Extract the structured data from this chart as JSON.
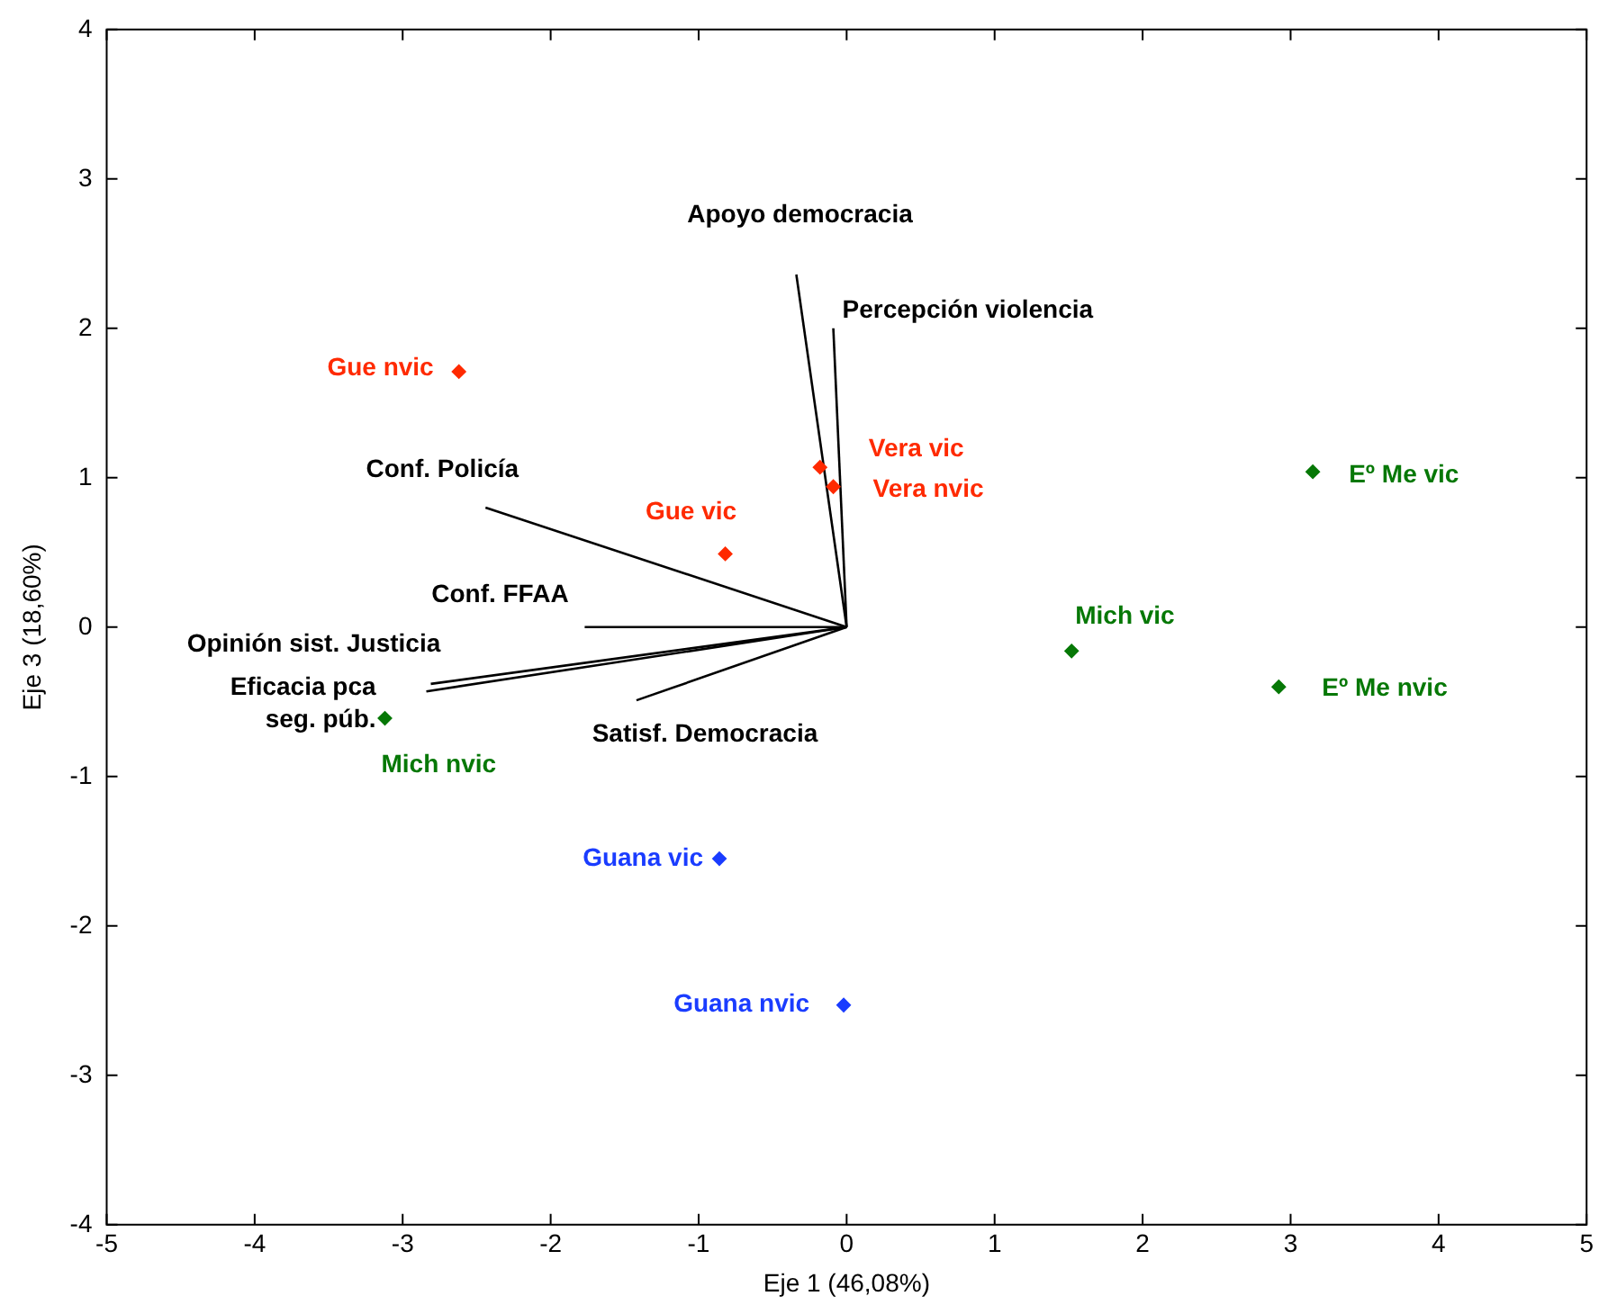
{
  "chart_data": {
    "type": "scatter",
    "xlabel": "Eje 1 (46,08%)",
    "ylabel": "Eje 3 (18,60%)",
    "xlim": [
      -5,
      5
    ],
    "ylim": [
      -4,
      4
    ],
    "xticks": [
      -5,
      -4,
      -3,
      -2,
      -1,
      0,
      1,
      2,
      3,
      4,
      5
    ],
    "yticks": [
      -4,
      -3,
      -2,
      -1,
      0,
      1,
      2,
      3,
      4
    ],
    "marker": "diamond",
    "series": [
      {
        "color": "#ff2a00",
        "x": [
          -2.62,
          -0.18,
          -0.09,
          -0.82
        ],
        "values": [
          1.71,
          1.07,
          0.94,
          0.49
        ]
      },
      {
        "color": "#067806",
        "x": [
          3.15,
          1.52,
          2.92,
          -3.12
        ],
        "values": [
          1.04,
          -0.16,
          -0.4,
          -0.61
        ]
      },
      {
        "color": "#1a3cff",
        "x": [
          -0.86,
          -0.02
        ],
        "values": [
          -1.55,
          -2.53
        ]
      },
      {
        "type": "line",
        "marker": "none",
        "name": "Apoyo democracia",
        "color": "#000000",
        "x": [
          0,
          -0.34
        ],
        "values": [
          0,
          2.36
        ]
      },
      {
        "type": "line",
        "marker": "none",
        "name": "Percepción violencia",
        "color": "#000000",
        "x": [
          0,
          -0.09
        ],
        "values": [
          0,
          2.0
        ]
      },
      {
        "type": "line",
        "marker": "none",
        "name": "Conf. Policía",
        "color": "#000000",
        "x": [
          0,
          -2.44
        ],
        "values": [
          0,
          0.8
        ]
      },
      {
        "type": "line",
        "marker": "none",
        "name": "Conf. FFAA",
        "color": "#000000",
        "x": [
          0,
          -1.77
        ],
        "values": [
          0,
          0.0
        ]
      },
      {
        "type": "line",
        "marker": "none",
        "name": "Opinión sist. Justicia",
        "color": "#000000",
        "x": [
          0,
          -2.81
        ],
        "values": [
          0,
          -0.38
        ]
      },
      {
        "type": "line",
        "marker": "none",
        "name": "Eficacia pca seg. púb.",
        "color": "#000000",
        "x": [
          0,
          -2.84
        ],
        "values": [
          0,
          -0.43
        ]
      },
      {
        "type": "line",
        "marker": "none",
        "name": "Satisf. Democracia",
        "color": "#000000",
        "x": [
          0,
          -1.42
        ],
        "values": [
          0,
          -0.49
        ]
      }
    ],
    "annotations": [
      {
        "text": "Gue nvic",
        "x": -2.62,
        "y": 1.71
      },
      {
        "text": "Vera vic",
        "x": -0.18,
        "y": 1.07
      },
      {
        "text": "Vera nvic",
        "x": -0.09,
        "y": 0.94
      },
      {
        "text": "Gue vic",
        "x": -0.82,
        "y": 0.49
      },
      {
        "text": "Eº Me vic",
        "x": 3.15,
        "y": 1.04
      },
      {
        "text": "Mich vic",
        "x": 1.52,
        "y": -0.16
      },
      {
        "text": "Eº Me nvic",
        "x": 2.92,
        "y": -0.4
      },
      {
        "text": "Mich nvic",
        "x": -3.12,
        "y": -0.61
      },
      {
        "text": "Guana vic",
        "x": -0.86,
        "y": -1.55
      },
      {
        "text": "Guana nvic",
        "x": -0.02,
        "y": -2.53
      }
    ]
  }
}
